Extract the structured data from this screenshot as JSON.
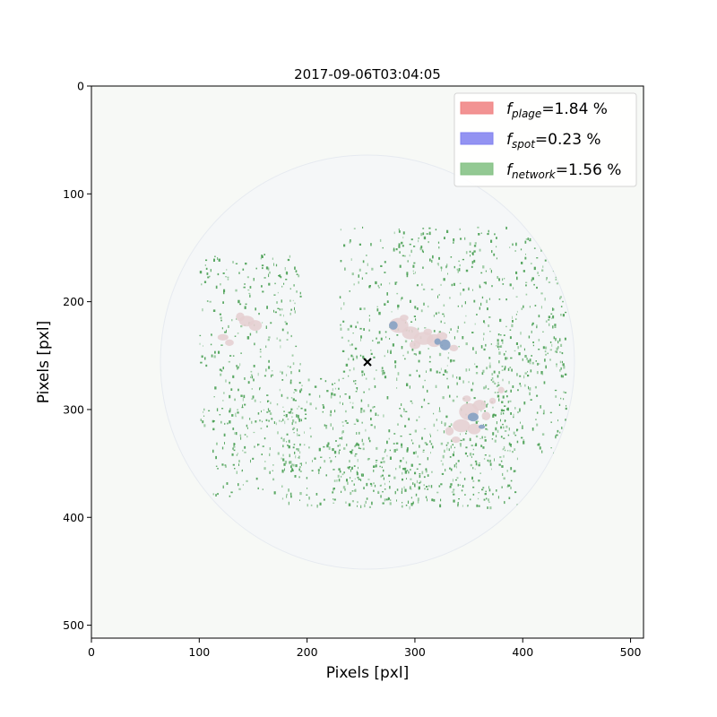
{
  "chart_data": {
    "type": "heatmap",
    "title": "2017-09-06T03:04:05",
    "xlabel": "Pixels [pxl]",
    "ylabel": "Pixels [pxl]",
    "xlim": [
      0,
      512
    ],
    "ylim": [
      512,
      0
    ],
    "xticks": [
      0,
      100,
      200,
      300,
      400,
      500
    ],
    "yticks": [
      0,
      100,
      200,
      300,
      400,
      500
    ],
    "grid": false,
    "legend_placement": "top-right",
    "legend": [
      {
        "name": "plage",
        "value": "1.84",
        "color": "#f08080"
      },
      {
        "name": "spot",
        "value": "0.23",
        "color": "#8080f0"
      },
      {
        "name": "network",
        "value": "1.56",
        "color": "#80c080"
      }
    ],
    "disk": {
      "center": [
        256,
        256
      ],
      "radius": 192
    },
    "center_marker": [
      256,
      256
    ],
    "features": {
      "plage": [
        [
          144,
          218,
          7,
          5
        ],
        [
          152,
          222,
          6,
          5
        ],
        [
          138,
          214,
          4,
          4
        ],
        [
          122,
          233,
          5,
          3
        ],
        [
          128,
          238,
          4,
          3
        ],
        [
          285,
          222,
          9,
          7
        ],
        [
          296,
          229,
          8,
          6
        ],
        [
          308,
          234,
          9,
          6
        ],
        [
          318,
          236,
          7,
          6
        ],
        [
          300,
          240,
          5,
          4
        ],
        [
          325,
          232,
          5,
          4
        ],
        [
          336,
          243,
          4,
          3
        ],
        [
          290,
          215,
          4,
          3
        ],
        [
          312,
          228,
          4,
          3
        ],
        [
          350,
          302,
          9,
          8
        ],
        [
          360,
          296,
          6,
          5
        ],
        [
          343,
          315,
          8,
          6
        ],
        [
          355,
          318,
          6,
          5
        ],
        [
          332,
          320,
          4,
          4
        ],
        [
          366,
          306,
          4,
          4
        ],
        [
          348,
          290,
          4,
          3
        ],
        [
          372,
          292,
          3,
          3
        ],
        [
          338,
          328,
          4,
          3
        ],
        [
          380,
          282,
          3,
          3
        ]
      ],
      "spot": [
        [
          280,
          222,
          4,
          4
        ],
        [
          328,
          240,
          5,
          5
        ],
        [
          354,
          307,
          5,
          4
        ],
        [
          362,
          316,
          3,
          2
        ],
        [
          321,
          237,
          3,
          3
        ]
      ],
      "network": [
        [
          100,
          155,
          95,
          160
        ],
        [
          230,
          130,
          210,
          140
        ],
        [
          175,
          270,
          220,
          120
        ],
        [
          110,
          300,
          90,
          80
        ],
        [
          360,
          230,
          80,
          110
        ],
        [
          220,
          330,
          150,
          60
        ]
      ]
    }
  }
}
